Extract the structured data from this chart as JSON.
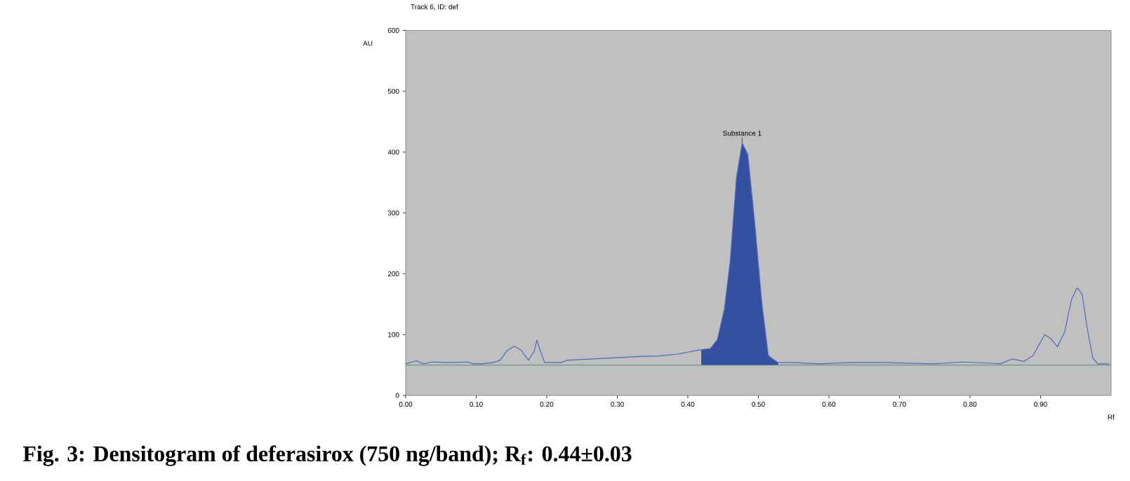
{
  "chart_data": {
    "type": "line",
    "title": "Track 6, ID: def",
    "xlabel": "Rf",
    "ylabel": "AU",
    "xlim": [
      0,
      1.0
    ],
    "ylim": [
      0,
      600
    ],
    "xticks": [
      {
        "value": 0,
        "label": "0.00"
      },
      {
        "value": 0.1,
        "label": "0.10"
      },
      {
        "value": 0.2,
        "label": "0.20"
      },
      {
        "value": 0.3,
        "label": "0.30"
      },
      {
        "value": 0.4,
        "label": "0.40"
      },
      {
        "value": 0.5,
        "label": "0.50"
      },
      {
        "value": 0.6,
        "label": "0.60"
      },
      {
        "value": 0.7,
        "label": "0.70"
      },
      {
        "value": 0.8,
        "label": "0.80"
      },
      {
        "value": 0.9,
        "label": "0.90"
      }
    ],
    "yticks": [
      0,
      100,
      200,
      300,
      400,
      500,
      600
    ],
    "series": [
      {
        "type": "area",
        "color": "#3450a0",
        "x": [
          0.419,
          0.432,
          0.442,
          0.452,
          0.46,
          0.469,
          0.477,
          0.485,
          0.495,
          0.505,
          0.514,
          0.518,
          0.528
        ],
        "values": [
          75,
          77,
          92,
          143,
          220,
          358,
          415,
          396,
          281,
          150,
          66,
          62,
          54
        ]
      },
      {
        "color": "#5565b5",
        "x": [
          0,
          0.015,
          0.025,
          0.038,
          0.064,
          0.088,
          0.096,
          0.107,
          0.124,
          0.134,
          0.144,
          0.154,
          0.164,
          0.174,
          0.182,
          0.186,
          0.19,
          0.197,
          0.22,
          0.23,
          0.266,
          0.3,
          0.333,
          0.36,
          0.386,
          0.412,
          0.419,
          0.432,
          0.442,
          0.452,
          0.46,
          0.469,
          0.477,
          0.485,
          0.495,
          0.505,
          0.514,
          0.518,
          0.528,
          0.551,
          0.585,
          0.631,
          0.683,
          0.749,
          0.79,
          0.83,
          0.843,
          0.86,
          0.876,
          0.889,
          0.906,
          0.915,
          0.924,
          0.934,
          0.944,
          0.952,
          0.959,
          0.966,
          0.974,
          0.981,
          0.997
        ],
        "values": [
          52,
          57,
          52,
          55,
          54,
          55,
          52,
          52,
          54,
          58,
          74,
          81,
          74,
          58,
          72,
          91,
          76,
          54,
          54,
          58,
          60,
          62,
          64,
          65,
          68,
          74,
          75,
          77,
          92,
          143,
          220,
          358,
          415,
          396,
          281,
          150,
          66,
          62,
          54,
          54,
          52,
          54,
          54,
          52,
          55,
          53,
          52,
          60,
          56,
          65,
          100,
          93,
          80,
          104,
          158,
          177,
          166,
          112,
          62,
          52,
          52
        ]
      }
    ],
    "ref_lines": [
      {
        "axis": "y",
        "value": 50,
        "color": "#5f9a8e"
      }
    ],
    "annotations": [
      {
        "text": "Substance 1",
        "x": 0.477,
        "y": 415
      },
      "Fig. 3: Densitogram of deferasirox (750 ng/band); R$_{f}$: 0.44±0.03"
    ]
  }
}
